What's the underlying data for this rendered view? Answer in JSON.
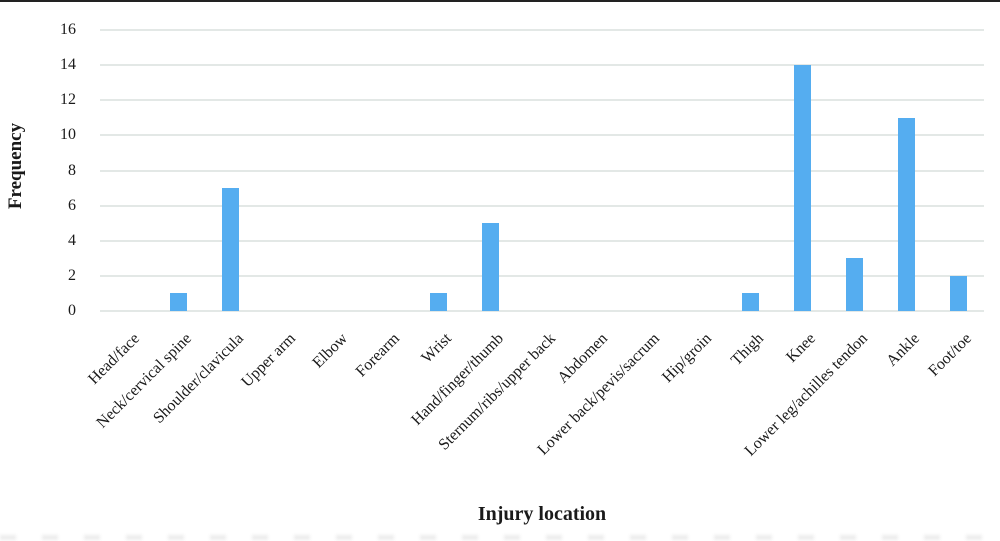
{
  "chart_data": {
    "type": "bar",
    "title": "",
    "categories": [
      "Head/face",
      "Neck/cervical spine",
      "Shoulder/clavicula",
      "Upper arm",
      "Elbow",
      "Forearm",
      "Wrist",
      "Hand/finger/thumb",
      "Sternum/ribs/upper back",
      "Abdomen",
      "Lower back/pevis/sacrum",
      "Hip/groin",
      "Thigh",
      "Knee",
      "Lower leg/achilles tendon",
      "Ankle",
      "Foot/toe"
    ],
    "values": [
      0,
      1,
      7,
      0,
      0,
      0,
      1,
      5,
      0,
      0,
      0,
      0,
      1,
      14,
      3,
      11,
      2
    ],
    "xlabel": "Injury location",
    "ylabel": "Frequency",
    "ylim": [
      0,
      16
    ],
    "yticks": [
      0,
      2,
      4,
      6,
      8,
      10,
      12,
      14,
      16
    ],
    "grid": true,
    "legend_position": "none",
    "bar_color": "#55ADF0",
    "gridline_color": "#E3E8E6",
    "text_color": "#1A1A1A",
    "top_border_color": "#222222"
  }
}
